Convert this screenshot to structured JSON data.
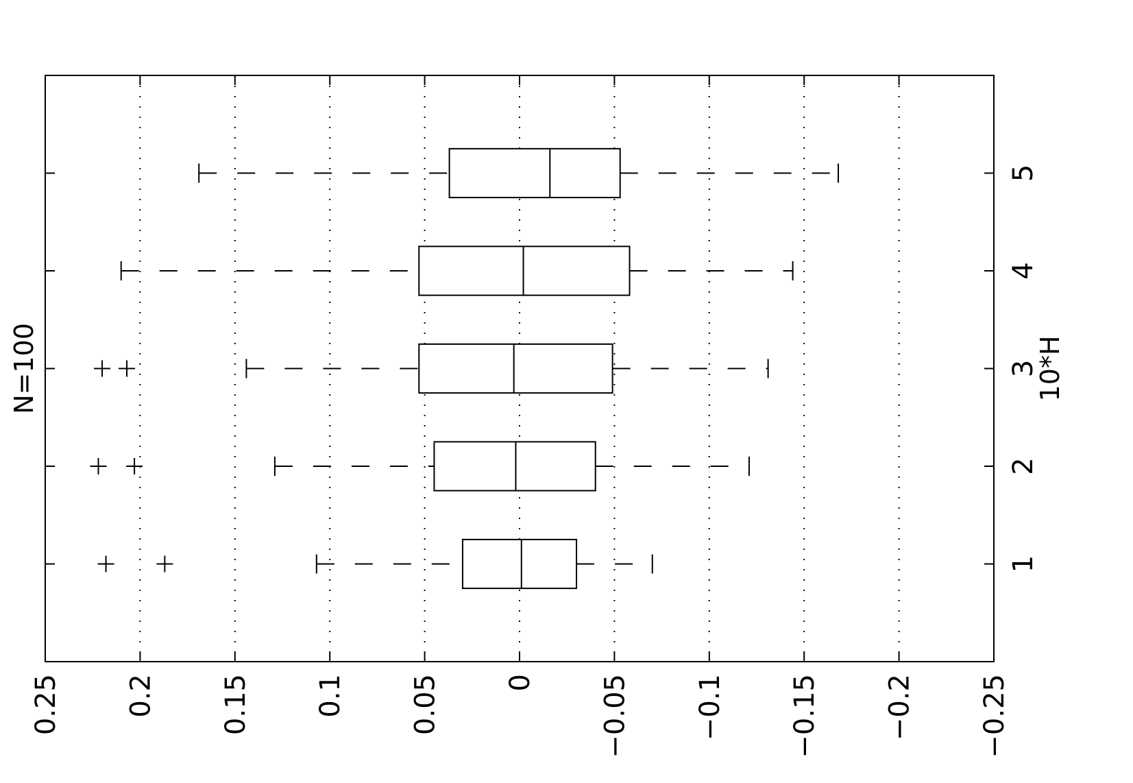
{
  "chart_data": {
    "type": "boxplot",
    "orientation": "rotated-90",
    "title": "N=100",
    "xlabel": "10*H",
    "ylabel": "",
    "categories": [
      "1",
      "2",
      "3",
      "4",
      "5"
    ],
    "value_axis": {
      "min": -0.25,
      "max": 0.25,
      "ticks": [
        0.25,
        0.2,
        0.15,
        0.1,
        0.05,
        0,
        -0.05,
        -0.1,
        -0.15,
        -0.2,
        -0.25
      ],
      "tick_labels": [
        "0.25",
        "0.2",
        "0.15",
        "0.1",
        "0.05",
        "0",
        "−0.05",
        "−0.1",
        "−0.15",
        "−0.2",
        "−0.25"
      ]
    },
    "grid": true,
    "boxes": [
      {
        "category": "1",
        "whisker_high": 0.107,
        "q3": 0.03,
        "median": -0.001,
        "q1": -0.03,
        "whisker_low": -0.07,
        "outliers": [
          0.218,
          0.187
        ]
      },
      {
        "category": "2",
        "whisker_high": 0.129,
        "q3": 0.045,
        "median": 0.002,
        "q1": -0.04,
        "whisker_low": -0.121,
        "outliers": [
          0.222,
          0.203
        ]
      },
      {
        "category": "3",
        "whisker_high": 0.144,
        "q3": 0.053,
        "median": 0.003,
        "q1": -0.049,
        "whisker_low": -0.131,
        "outliers": [
          0.22,
          0.207
        ]
      },
      {
        "category": "4",
        "whisker_high": 0.21,
        "q3": 0.053,
        "median": -0.002,
        "q1": -0.058,
        "whisker_low": -0.144,
        "outliers": []
      },
      {
        "category": "5",
        "whisker_high": 0.169,
        "q3": 0.037,
        "median": -0.016,
        "q1": -0.053,
        "whisker_low": -0.168,
        "outliers": []
      }
    ]
  }
}
